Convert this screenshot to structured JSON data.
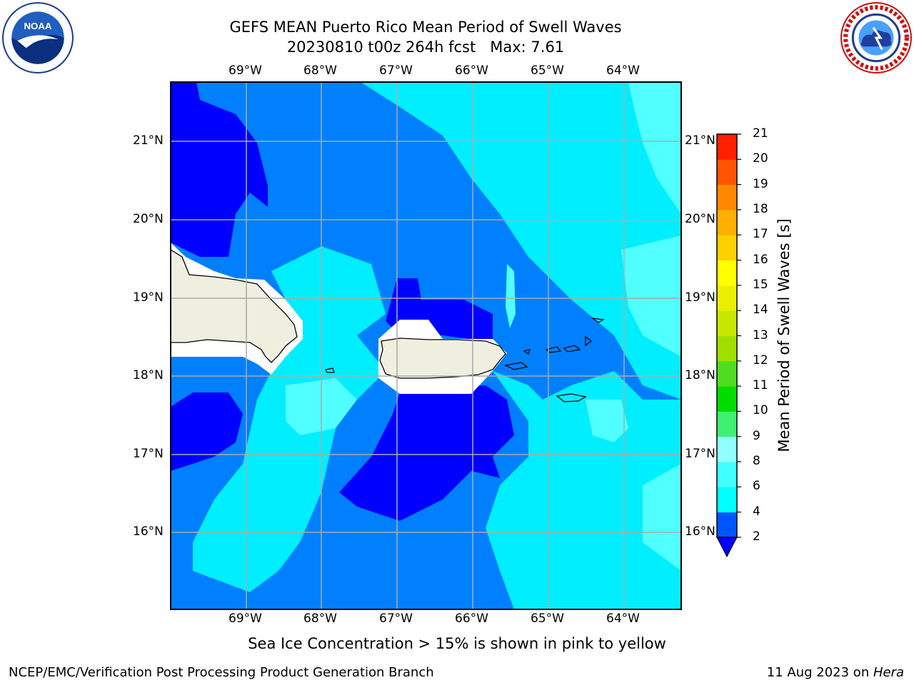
{
  "title": {
    "line1": "GEFS MEAN Puerto Rico Mean Period of Swell Waves",
    "line2": "20230810 t00z 264h fcst   Max: 7.61"
  },
  "logos": {
    "left": "noaa-logo",
    "right": "nws-logo"
  },
  "map": {
    "lon_ticks": [
      "69°W",
      "68°W",
      "67°W",
      "66°W",
      "65°W",
      "64°W"
    ],
    "lat_ticks": [
      "21°N",
      "20°N",
      "19°N",
      "18°N",
      "17°N",
      "16°N"
    ],
    "extent": {
      "lon": [
        -70.0,
        -63.25
      ],
      "lat": [
        15.0,
        21.75
      ]
    },
    "gridlines": true,
    "land_color": "#efefdf"
  },
  "colorbar": {
    "title": "Mean Period of Swell Waves [s]",
    "levels": [
      "2",
      "4",
      "6",
      "8",
      "9",
      "10",
      "11",
      "12",
      "13",
      "14",
      "15",
      "16",
      "17",
      "18",
      "19",
      "20",
      "21"
    ],
    "colors": [
      "#0055ff",
      "#00ffff",
      "#40ffff",
      "#90ffff",
      "#40f070",
      "#00dd00",
      "#50dd20",
      "#a0e000",
      "#c8e800",
      "#e8f000",
      "#ffff00",
      "#ffd000",
      "#ffb000",
      "#ff8800",
      "#ff5500",
      "#ff2000",
      "#ff0000"
    ],
    "extend_min_color": "#0000ff"
  },
  "subtitle": "Sea Ice Concentration > 15% is shown in pink to yellow",
  "footer": {
    "left": "NCEP/EMC/Verification Post Processing Product Generation Branch",
    "right_date": "11 Aug 2023 on ",
    "right_host": "Hera"
  }
}
